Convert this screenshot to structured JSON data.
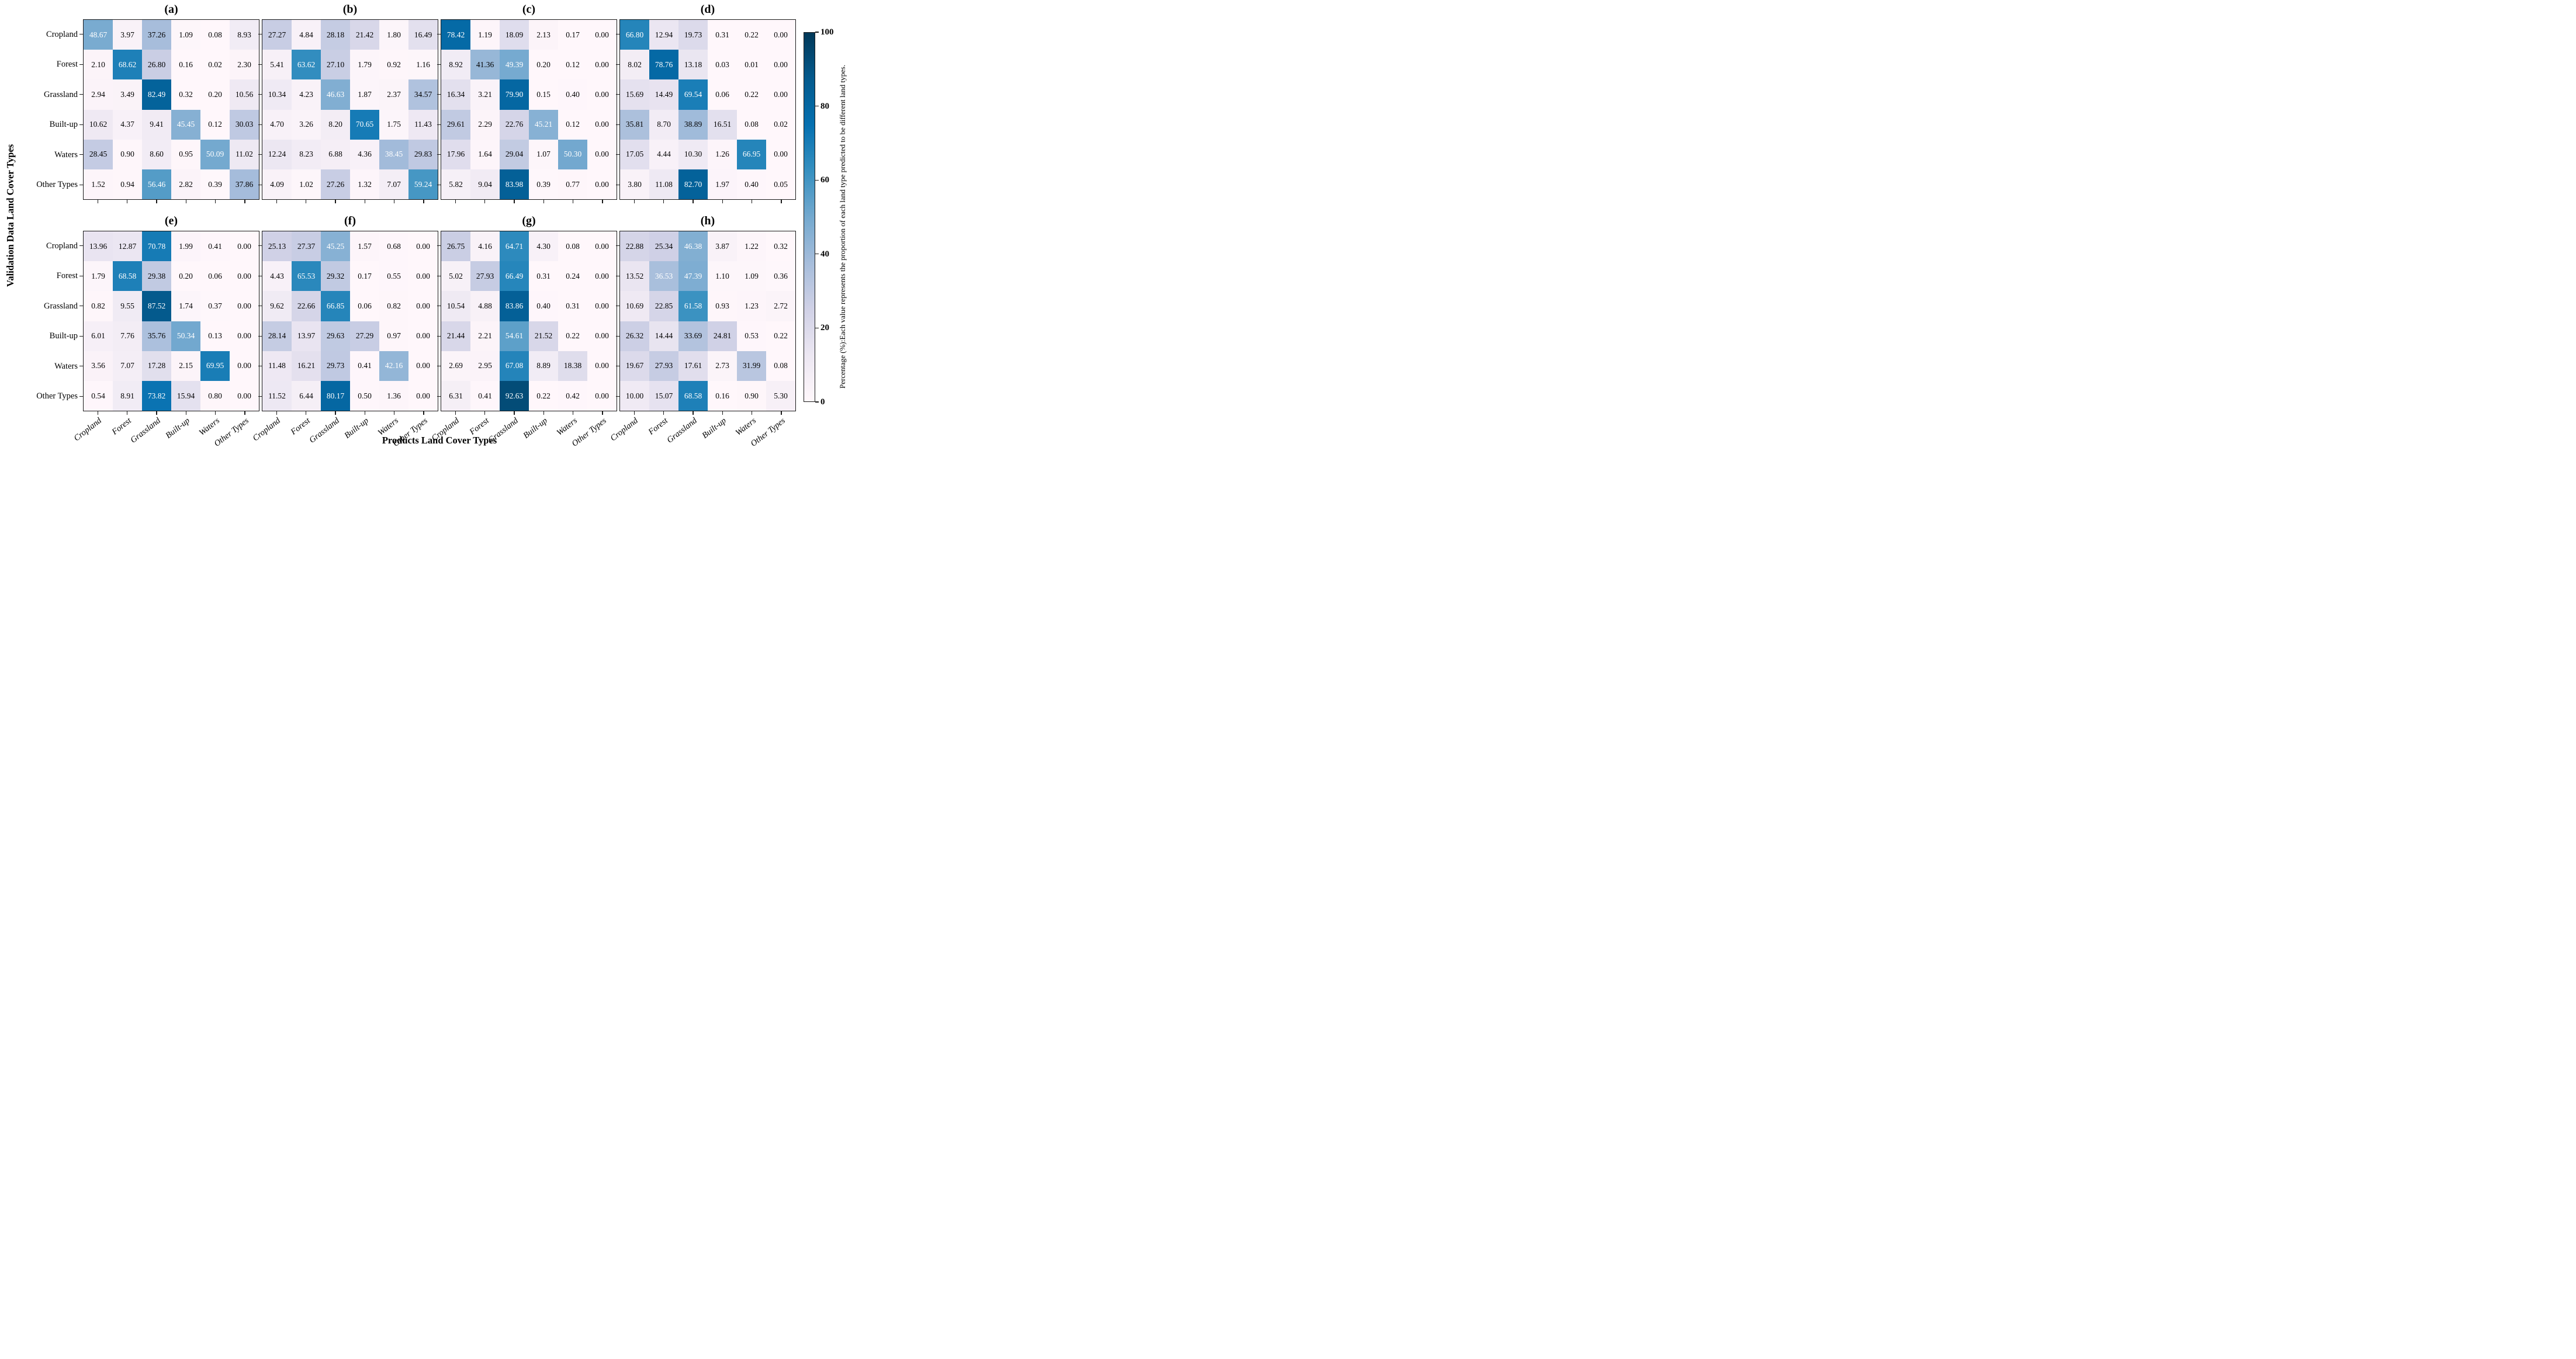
{
  "figure": {
    "y_axis_title": "Validation Data Land Cover Types",
    "x_axis_title": "Products Land Cover Types",
    "categories": [
      "Cropland",
      "Forest",
      "Grassland",
      "Built-up",
      "Waters",
      "Other Types"
    ],
    "colorbar": {
      "ticks": [
        0,
        20,
        40,
        60,
        80,
        100
      ],
      "range": [
        0,
        100
      ],
      "colormap": "PuBu",
      "label": "Percentage (%):Each value represents the proportion of each land type predicted to be different land types."
    }
  },
  "chart_data": [
    {
      "type": "heatmap",
      "title": "(a)",
      "categories": [
        "Cropland",
        "Forest",
        "Grassland",
        "Built-up",
        "Waters",
        "Other Types"
      ],
      "values": [
        [
          48.67,
          3.97,
          37.26,
          1.09,
          0.08,
          8.93
        ],
        [
          2.1,
          68.62,
          26.8,
          0.16,
          0.02,
          2.3
        ],
        [
          2.94,
          3.49,
          82.49,
          0.32,
          0.2,
          10.56
        ],
        [
          10.62,
          4.37,
          9.41,
          45.45,
          0.12,
          30.03
        ],
        [
          28.45,
          0.9,
          8.6,
          0.95,
          50.09,
          11.02
        ],
        [
          1.52,
          0.94,
          56.46,
          2.82,
          0.39,
          37.86
        ]
      ]
    },
    {
      "type": "heatmap",
      "title": "(b)",
      "categories": [
        "Cropland",
        "Forest",
        "Grassland",
        "Built-up",
        "Waters",
        "Other Types"
      ],
      "values": [
        [
          27.27,
          4.84,
          28.18,
          21.42,
          1.8,
          16.49
        ],
        [
          5.41,
          63.62,
          27.1,
          1.79,
          0.92,
          1.16
        ],
        [
          10.34,
          4.23,
          46.63,
          1.87,
          2.37,
          34.57
        ],
        [
          4.7,
          3.26,
          8.2,
          70.65,
          1.75,
          11.43
        ],
        [
          12.24,
          8.23,
          6.88,
          4.36,
          38.45,
          29.83
        ],
        [
          4.09,
          1.02,
          27.26,
          1.32,
          7.07,
          59.24
        ]
      ]
    },
    {
      "type": "heatmap",
      "title": "(c)",
      "categories": [
        "Cropland",
        "Forest",
        "Grassland",
        "Built-up",
        "Waters",
        "Other Types"
      ],
      "values": [
        [
          78.42,
          1.19,
          18.09,
          2.13,
          0.17,
          0.0
        ],
        [
          8.92,
          41.36,
          49.39,
          0.2,
          0.12,
          0.0
        ],
        [
          16.34,
          3.21,
          79.9,
          0.15,
          0.4,
          0.0
        ],
        [
          29.61,
          2.29,
          22.76,
          45.21,
          0.12,
          0.0
        ],
        [
          17.96,
          1.64,
          29.04,
          1.07,
          50.3,
          0.0
        ],
        [
          5.82,
          9.04,
          83.98,
          0.39,
          0.77,
          0.0
        ]
      ]
    },
    {
      "type": "heatmap",
      "title": "(d)",
      "categories": [
        "Cropland",
        "Forest",
        "Grassland",
        "Built-up",
        "Waters",
        "Other Types"
      ],
      "values": [
        [
          66.8,
          12.94,
          19.73,
          0.31,
          0.22,
          0.0
        ],
        [
          8.02,
          78.76,
          13.18,
          0.03,
          0.01,
          0.0
        ],
        [
          15.69,
          14.49,
          69.54,
          0.06,
          0.22,
          0.0
        ],
        [
          35.81,
          8.7,
          38.89,
          16.51,
          0.08,
          0.02
        ],
        [
          17.05,
          4.44,
          10.3,
          1.26,
          66.95,
          0.0
        ],
        [
          3.8,
          11.08,
          82.7,
          1.97,
          0.4,
          0.05
        ]
      ]
    },
    {
      "type": "heatmap",
      "title": "(e)",
      "categories": [
        "Cropland",
        "Forest",
        "Grassland",
        "Built-up",
        "Waters",
        "Other Types"
      ],
      "values": [
        [
          13.96,
          12.87,
          70.78,
          1.99,
          0.41,
          0.0
        ],
        [
          1.79,
          68.58,
          29.38,
          0.2,
          0.06,
          0.0
        ],
        [
          0.82,
          9.55,
          87.52,
          1.74,
          0.37,
          0.0
        ],
        [
          6.01,
          7.76,
          35.76,
          50.34,
          0.13,
          0.0
        ],
        [
          3.56,
          7.07,
          17.28,
          2.15,
          69.95,
          0.0
        ],
        [
          0.54,
          8.91,
          73.82,
          15.94,
          0.8,
          0.0
        ]
      ]
    },
    {
      "type": "heatmap",
      "title": "(f)",
      "categories": [
        "Cropland",
        "Forest",
        "Grassland",
        "Built-up",
        "Waters",
        "Other Types"
      ],
      "values": [
        [
          25.13,
          27.37,
          45.25,
          1.57,
          0.68,
          0.0
        ],
        [
          4.43,
          65.53,
          29.32,
          0.17,
          0.55,
          0.0
        ],
        [
          9.62,
          22.66,
          66.85,
          0.06,
          0.82,
          0.0
        ],
        [
          28.14,
          13.97,
          29.63,
          27.29,
          0.97,
          0.0
        ],
        [
          11.48,
          16.21,
          29.73,
          0.41,
          42.16,
          0.0
        ],
        [
          11.52,
          6.44,
          80.17,
          0.5,
          1.36,
          0.0
        ]
      ]
    },
    {
      "type": "heatmap",
      "title": "(g)",
      "categories": [
        "Cropland",
        "Forest",
        "Grassland",
        "Built-up",
        "Waters",
        "Other Types"
      ],
      "values": [
        [
          26.75,
          4.16,
          64.71,
          4.3,
          0.08,
          0.0
        ],
        [
          5.02,
          27.93,
          66.49,
          0.31,
          0.24,
          0.0
        ],
        [
          10.54,
          4.88,
          83.86,
          0.4,
          0.31,
          0.0
        ],
        [
          21.44,
          2.21,
          54.61,
          21.52,
          0.22,
          0.0
        ],
        [
          2.69,
          2.95,
          67.08,
          8.89,
          18.38,
          0.0
        ],
        [
          6.31,
          0.41,
          92.63,
          0.22,
          0.42,
          0.0
        ]
      ]
    },
    {
      "type": "heatmap",
      "title": "(h)",
      "categories": [
        "Cropland",
        "Forest",
        "Grassland",
        "Built-up",
        "Waters",
        "Other Types"
      ],
      "values": [
        [
          22.88,
          25.34,
          46.38,
          3.87,
          1.22,
          0.32
        ],
        [
          13.52,
          36.53,
          47.39,
          1.1,
          1.09,
          0.36
        ],
        [
          10.69,
          22.85,
          61.58,
          0.93,
          1.23,
          2.72
        ],
        [
          26.32,
          14.44,
          33.69,
          24.81,
          0.53,
          0.22
        ],
        [
          19.67,
          27.93,
          17.61,
          2.73,
          31.99,
          0.08
        ],
        [
          10.0,
          15.07,
          68.58,
          0.16,
          0.9,
          5.3
        ]
      ]
    }
  ]
}
